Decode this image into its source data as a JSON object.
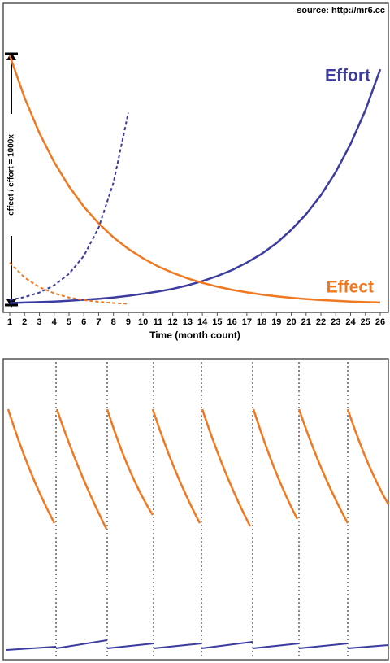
{
  "chart_data": {
    "type": "line",
    "source": "source: http://mr6.cc",
    "xlabel": "Time (month count)",
    "annotation": "effect / effort = 1000x",
    "x": [
      1,
      2,
      3,
      4,
      5,
      6,
      7,
      8,
      9,
      10,
      11,
      12,
      13,
      14,
      15,
      16,
      17,
      18,
      19,
      20,
      21,
      22,
      23,
      24,
      25,
      26
    ],
    "xlim": [
      1,
      26
    ],
    "xticks": [
      1,
      2,
      3,
      4,
      5,
      6,
      7,
      8,
      9,
      10,
      11,
      12,
      13,
      14,
      15,
      16,
      17,
      18,
      19,
      20,
      21,
      22,
      23,
      24,
      25,
      26
    ],
    "ylim": [
      0,
      100
    ],
    "series": [
      {
        "name": "Effort",
        "color": "#3b3ba0",
        "dashed": false,
        "values": [
          0.8,
          1.0,
          1.2,
          1.4,
          1.7,
          2.1,
          2.5,
          3.0,
          3.7,
          4.5,
          5.4,
          6.5,
          7.9,
          9.6,
          11.6,
          14.0,
          17.0,
          20.5,
          24.8,
          30.1,
          36.4,
          44.0,
          53.3,
          64.5,
          78.0,
          94.4
        ]
      },
      {
        "name": "Effect",
        "color": "#f07820",
        "dashed": false,
        "values": [
          100,
          83,
          68.9,
          57.2,
          47.5,
          39.4,
          32.7,
          27.1,
          22.5,
          18.7,
          15.5,
          12.9,
          10.7,
          8.9,
          7.4,
          6.1,
          5.1,
          4.2,
          3.5,
          2.9,
          2.4,
          2.0,
          1.7,
          1.4,
          1.2,
          1.0
        ]
      },
      {
        "color": "#3b3ba0",
        "dashed": true,
        "values": [
          2,
          3.2,
          5,
          7.9,
          12.5,
          19.7,
          31,
          49,
          77,
          null,
          null,
          null,
          null,
          null,
          null,
          null,
          null,
          null,
          null,
          null,
          null,
          null,
          null,
          null,
          null,
          null
        ]
      },
      {
        "color": "#f07820",
        "dashed": true,
        "values": [
          17,
          11,
          7.2,
          4.7,
          3.0,
          2.0,
          1.3,
          0.8,
          0.5,
          null,
          null,
          null,
          null,
          null,
          null,
          null,
          null,
          null,
          null,
          null,
          null,
          null,
          null,
          null,
          null,
          null
        ]
      }
    ]
  }
}
